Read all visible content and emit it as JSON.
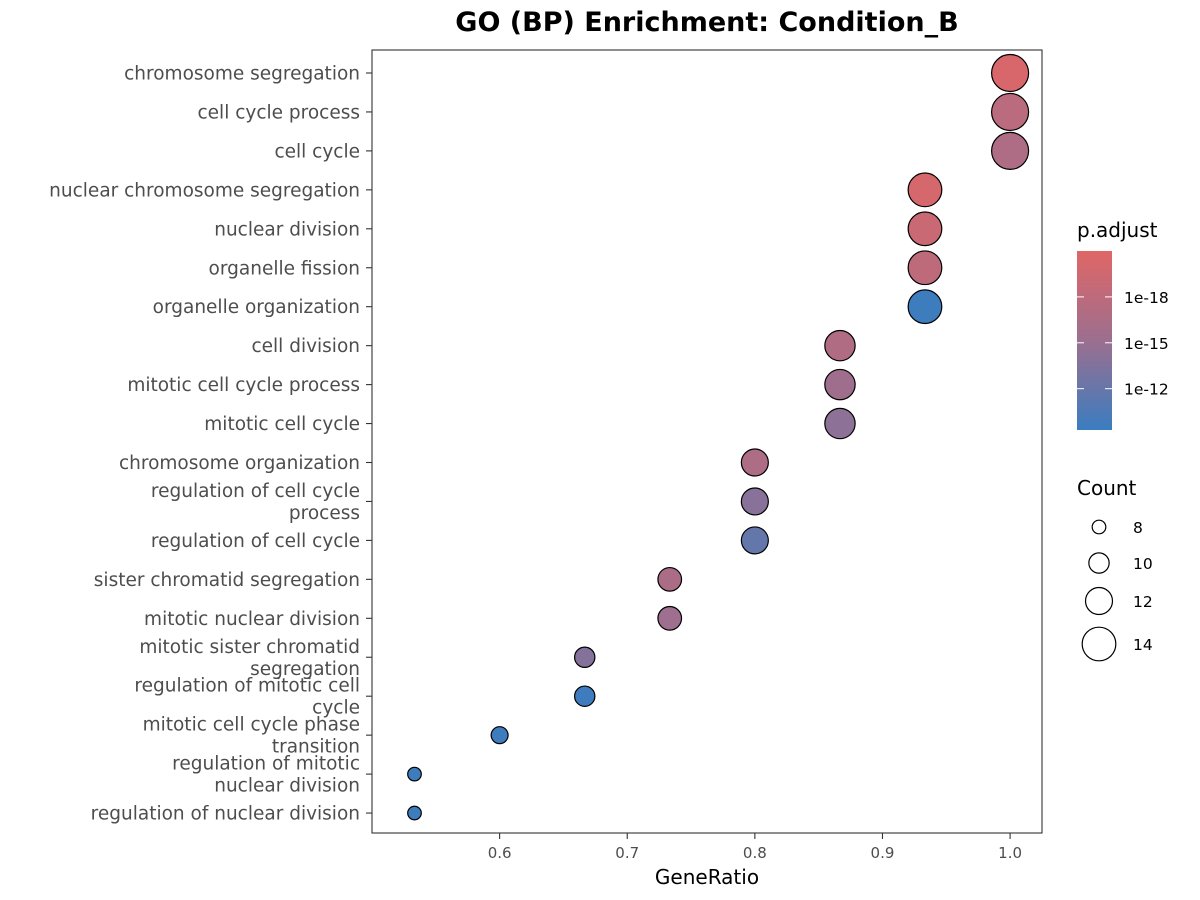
{
  "chart_data": {
    "type": "scatter",
    "title": "GO (BP) Enrichment: Condition_B",
    "xlabel": "GeneRatio",
    "ylabel": "",
    "xlim": [
      0.5,
      1.025
    ],
    "xticks": [
      0.6,
      0.7,
      0.8,
      0.9,
      1.0
    ],
    "xtick_labels": [
      "0.6",
      "0.7",
      "0.8",
      "0.9",
      "1.0"
    ],
    "grid": false,
    "terms": [
      {
        "label": [
          "chromosome segregation"
        ],
        "gene_ratio": 1.0,
        "count": 15,
        "log10_p_adjust": -20.3
      },
      {
        "label": [
          "cell cycle process"
        ],
        "gene_ratio": 1.0,
        "count": 15,
        "log10_p_adjust": -17.7
      },
      {
        "label": [
          "cell cycle"
        ],
        "gene_ratio": 1.0,
        "count": 15,
        "log10_p_adjust": -16.7
      },
      {
        "label": [
          "nuclear chromosome segregation"
        ],
        "gene_ratio": 0.9333,
        "count": 14,
        "log10_p_adjust": -20.0
      },
      {
        "label": [
          "nuclear division"
        ],
        "gene_ratio": 0.9333,
        "count": 14,
        "log10_p_adjust": -19.0
      },
      {
        "label": [
          "organelle fission"
        ],
        "gene_ratio": 0.9333,
        "count": 14,
        "log10_p_adjust": -18.0
      },
      {
        "label": [
          "organelle organization"
        ],
        "gene_ratio": 0.9333,
        "count": 14,
        "log10_p_adjust": -9.5
      },
      {
        "label": [
          "cell division"
        ],
        "gene_ratio": 0.8667,
        "count": 13,
        "log10_p_adjust": -16.8
      },
      {
        "label": [
          "mitotic cell cycle process"
        ],
        "gene_ratio": 0.8667,
        "count": 13,
        "log10_p_adjust": -15.5
      },
      {
        "label": [
          "mitotic cell cycle"
        ],
        "gene_ratio": 0.8667,
        "count": 13,
        "log10_p_adjust": -14.3
      },
      {
        "label": [
          "chromosome organization"
        ],
        "gene_ratio": 0.8,
        "count": 12,
        "log10_p_adjust": -16.6
      },
      {
        "label": [
          "regulation of cell cycle",
          "process"
        ],
        "gene_ratio": 0.8,
        "count": 12,
        "log10_p_adjust": -14.0
      },
      {
        "label": [
          "regulation of cell cycle"
        ],
        "gene_ratio": 0.8,
        "count": 12,
        "log10_p_adjust": -11.8
      },
      {
        "label": [
          "sister chromatid segregation"
        ],
        "gene_ratio": 0.7333,
        "count": 11,
        "log10_p_adjust": -16.4
      },
      {
        "label": [
          "mitotic nuclear division"
        ],
        "gene_ratio": 0.7333,
        "count": 11,
        "log10_p_adjust": -15.3
      },
      {
        "label": [
          "mitotic sister chromatid",
          "segregation"
        ],
        "gene_ratio": 0.6667,
        "count": 10,
        "log10_p_adjust": -13.8
      },
      {
        "label": [
          "regulation of mitotic cell",
          "cycle"
        ],
        "gene_ratio": 0.6667,
        "count": 10,
        "log10_p_adjust": -9.6
      },
      {
        "label": [
          "mitotic cell cycle phase",
          "transition"
        ],
        "gene_ratio": 0.6,
        "count": 9,
        "log10_p_adjust": -9.5
      },
      {
        "label": [
          "regulation of mitotic",
          "nuclear division"
        ],
        "gene_ratio": 0.5333,
        "count": 8,
        "log10_p_adjust": -9.5
      },
      {
        "label": [
          "regulation of nuclear division"
        ],
        "gene_ratio": 0.5333,
        "count": 8,
        "log10_p_adjust": -9.5
      }
    ],
    "color_legend": {
      "title": "p.adjust",
      "scale": "log10",
      "range_log10": [
        -21.0,
        -9.3
      ],
      "low_color": "#e06666",
      "high_color": "#3a7dc0",
      "mid_color": "#9c6f8f",
      "breaks_log10": [
        -18,
        -15,
        -12
      ],
      "labels": [
        "1e-18",
        "1e-15",
        "1e-12"
      ]
    },
    "size_legend": {
      "title": "Count",
      "values": [
        8,
        10,
        12,
        14
      ],
      "labels": [
        "8",
        "10",
        "12",
        "14"
      ]
    }
  }
}
